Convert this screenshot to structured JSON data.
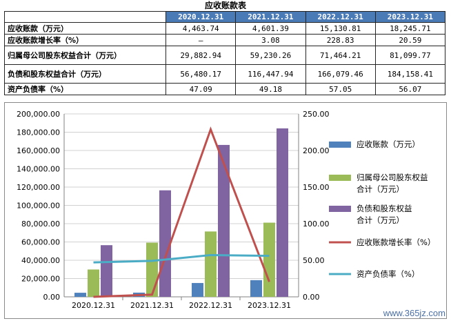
{
  "title": "应收账款表",
  "table": {
    "headers": [
      "2020.12.31",
      "2021.12.31",
      "2022.12.31",
      "2023.12.31"
    ],
    "rows": [
      {
        "label": "应收账款（万元）",
        "values": [
          "4,463.74",
          "4,601.39",
          "15,130.81",
          "18,245.71"
        ]
      },
      {
        "label": "应收账款增长率（%）",
        "values": [
          "–",
          "3.08",
          "228.83",
          "20.59"
        ]
      },
      {
        "label": "归属母公司股东权益合计（万元）",
        "values": [
          "29,882.94",
          "59,230.26",
          "71,464.21",
          "81,099.77"
        ]
      },
      {
        "label": "负债和股东权益合计（万元）",
        "values": [
          "56,480.17",
          "116,447.94",
          "166,079.46",
          "184,158.41"
        ]
      },
      {
        "label": "资产负债率（%）",
        "values": [
          "47.09",
          "49.18",
          "57.05",
          "56.07"
        ]
      }
    ]
  },
  "chart_data": {
    "type": "bar",
    "categories": [
      "2020.12.31",
      "2021.12.31",
      "2022.12.31",
      "2023.12.31"
    ],
    "y_left": {
      "ylim": [
        0,
        200000
      ],
      "ticks": [
        "0.00",
        "20,000.00",
        "40,000.00",
        "60,000.00",
        "80,000.00",
        "100,000.00",
        "120,000.00",
        "140,000.00",
        "160,000.00",
        "180,000.00",
        "200,000.00"
      ]
    },
    "y_right": {
      "ylim": [
        0,
        250
      ],
      "ticks": [
        "0.00",
        "50.00",
        "100.00",
        "150.00",
        "200.00",
        "250.00"
      ]
    },
    "series": [
      {
        "name": "应收账款（万元）",
        "kind": "bar",
        "axis": "left",
        "color": "#4f81bd",
        "values": [
          4463.74,
          4601.39,
          15130.81,
          18245.71
        ]
      },
      {
        "name": "归属母公司股东权益合计（万元）",
        "kind": "bar",
        "axis": "left",
        "color": "#9bbb59",
        "values": [
          29882.94,
          59230.26,
          71464.21,
          81099.77
        ]
      },
      {
        "name": "负债和股东权益合计（万元）",
        "kind": "bar",
        "axis": "left",
        "color": "#8064a2",
        "values": [
          56480.17,
          116447.94,
          166079.46,
          184158.41
        ]
      },
      {
        "name": "应收账款增长率（%）",
        "kind": "line",
        "axis": "right",
        "color": "#c0504d",
        "values": [
          0,
          3.08,
          228.83,
          20.59
        ]
      },
      {
        "name": "资产负债率（%）",
        "kind": "line",
        "axis": "right",
        "color": "#4bacc6",
        "values": [
          47.09,
          49.18,
          57.05,
          56.07
        ]
      }
    ],
    "legend_position": "right"
  },
  "watermark": "www.365jz.com"
}
